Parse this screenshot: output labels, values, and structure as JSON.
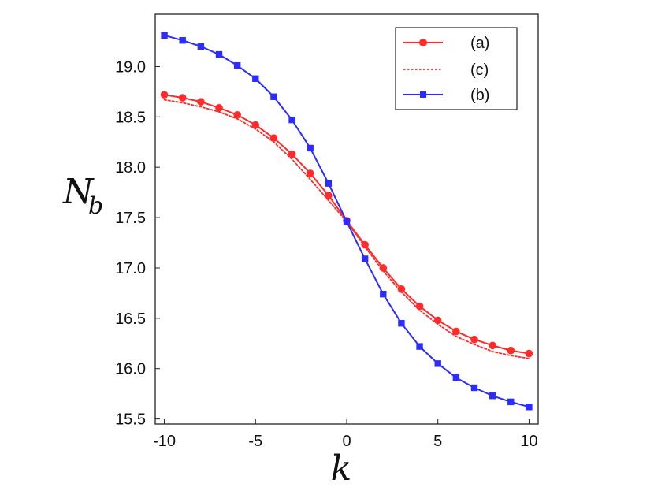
{
  "chart_data": {
    "type": "line",
    "title": "",
    "xlabel": "k",
    "ylabel_main": "N",
    "ylabel_sub": "b",
    "xlim": [
      -10.5,
      10.5
    ],
    "ylim": [
      15.45,
      19.52
    ],
    "xticks": [
      -10,
      -5,
      0,
      5,
      10
    ],
    "xtick_labels": [
      "-10",
      "-5",
      "0",
      "5",
      "10"
    ],
    "yticks": [
      15.5,
      16.0,
      16.5,
      17.0,
      17.5,
      18.0,
      18.5,
      19.0
    ],
    "ytick_labels": [
      "15.5",
      "16.0",
      "16.5",
      "17.0",
      "17.5",
      "18.0",
      "18.5",
      "19.0"
    ],
    "grid": false,
    "legend_position": "top-right",
    "x": [
      -10,
      -9,
      -8,
      -7,
      -6,
      -5,
      -4,
      -3,
      -2,
      -1,
      0,
      1,
      2,
      3,
      4,
      5,
      6,
      7,
      8,
      9,
      10
    ],
    "series": [
      {
        "name": "(a)",
        "style": "solid",
        "marker": "circle",
        "color": "#ff2a2a",
        "values": [
          18.72,
          18.69,
          18.65,
          18.59,
          18.52,
          18.42,
          18.29,
          18.13,
          17.94,
          17.72,
          17.47,
          17.23,
          17.0,
          16.79,
          16.62,
          16.48,
          16.37,
          16.29,
          16.23,
          16.18,
          16.15
        ]
      },
      {
        "name": "(c)",
        "style": "dotted",
        "marker": "none",
        "color": "#ff2a2a",
        "values": [
          18.67,
          18.64,
          18.6,
          18.55,
          18.48,
          18.38,
          18.25,
          18.08,
          17.88,
          17.67,
          17.46,
          17.21,
          16.97,
          16.76,
          16.58,
          16.44,
          16.32,
          16.24,
          16.17,
          16.13,
          16.1
        ]
      },
      {
        "name": "(b)",
        "style": "solid",
        "marker": "square",
        "color": "#2c2cff",
        "values": [
          19.31,
          19.26,
          19.2,
          19.12,
          19.01,
          18.88,
          18.7,
          18.47,
          18.19,
          17.84,
          17.46,
          17.09,
          16.74,
          16.45,
          16.22,
          16.05,
          15.91,
          15.81,
          15.73,
          15.67,
          15.62
        ]
      }
    ]
  }
}
